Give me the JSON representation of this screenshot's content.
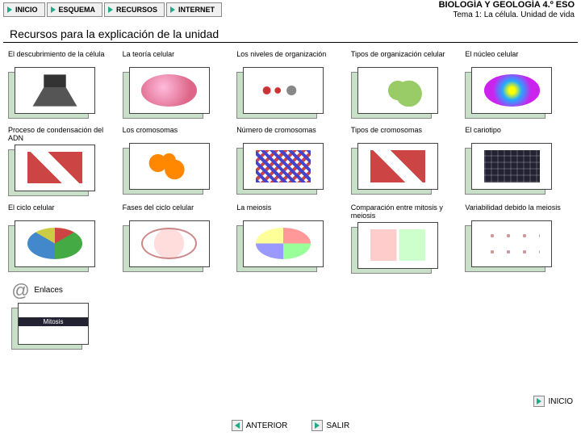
{
  "colors": {
    "accent": "#22aa88",
    "card_back": "#c7e0c7",
    "border": "#444444"
  },
  "nav": {
    "items": [
      {
        "label": "INICIO"
      },
      {
        "label": "ESQUEMA"
      },
      {
        "label": "RECURSOS"
      },
      {
        "label": "INTERNET"
      }
    ]
  },
  "header": {
    "line1": "BIOLOGÍA Y GEOLOGÍA 4.º ESO",
    "line2": "Tema 1: La célula. Unidad de vida"
  },
  "section_title": "Recursos para la explicación de la unidad",
  "grid": {
    "cards": [
      {
        "label": "El descubrimiento de la célula",
        "g": "g-person"
      },
      {
        "label": "La teoría celular",
        "g": "g-oval"
      },
      {
        "label": "Los niveles de organización",
        "g": "g-atoms"
      },
      {
        "label": "Tipos de organización celular",
        "g": "g-cells"
      },
      {
        "label": "El núcleo celular",
        "g": "g-nucleus"
      },
      {
        "label": "Proceso de condensación del ADN",
        "g": "g-chromo"
      },
      {
        "label": "Los cromosomas",
        "g": "g-blobs"
      },
      {
        "label": "Número de cromosomas",
        "g": "g-dna"
      },
      {
        "label": "Tipos de cromosomas",
        "g": "g-chromo"
      },
      {
        "label": "El cariotipo",
        "g": "g-kary"
      },
      {
        "label": "El ciclo celular",
        "g": "g-cycle"
      },
      {
        "label": "Fases del ciclo celular",
        "g": "g-phase"
      },
      {
        "label": "La meiosis",
        "g": "g-pie"
      },
      {
        "label": "Comparación entre mitosis y meiosis",
        "g": "g-compare"
      },
      {
        "label": "Variabilidad debido la meiosis",
        "g": "g-dots"
      }
    ]
  },
  "links": {
    "label": "Enlaces",
    "title": "Mitosis",
    "g": "g-spindle"
  },
  "footer": {
    "inicio": "INICIO",
    "anterior": "ANTERIOR",
    "salir": "SALIR"
  }
}
